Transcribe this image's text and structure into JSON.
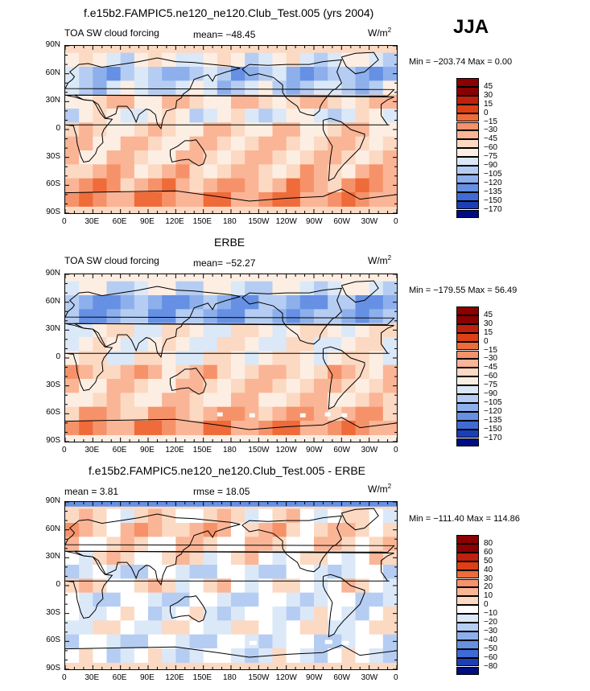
{
  "header": {
    "season": "JJA"
  },
  "panels": [
    {
      "title": "f.e15b2.FAMPIC5.ne120_ne120.Club_Test.005 (yrs 2004)",
      "field_label": "TOA SW cloud forcing",
      "stat1": "mean=  −48.45",
      "stat2": "",
      "units": "W/m",
      "units_sup": "2",
      "minmax": "Min = −203.74  Max =    0.00",
      "colorbar": [
        "45",
        "30",
        "15",
        "0",
        "−15",
        "−30",
        "−45",
        "−60",
        "−75",
        "−90",
        "−105",
        "−120",
        "−135",
        "−150",
        "−170"
      ]
    },
    {
      "title": "ERBE",
      "field_label": "TOA SW cloud forcing",
      "stat1": "mean= −52.27",
      "stat2": "",
      "units": "W/m",
      "units_sup": "2",
      "minmax": "Min = −179.55  Max =   56.49",
      "colorbar": [
        "45",
        "30",
        "15",
        "0",
        "−15",
        "−30",
        "−45",
        "−60",
        "−75",
        "−90",
        "−105",
        "−120",
        "−135",
        "−150",
        "−170"
      ]
    },
    {
      "title": "f.e15b2.FAMPIC5.ne120_ne120.Club_Test.005 - ERBE",
      "field_label": "",
      "stat1": "mean =    3.81",
      "stat2": "rmse =   18.05",
      "units": "W/m",
      "units_sup": "2",
      "minmax": "Min = −111.40  Max = 114.86",
      "colorbar": [
        "80",
        "60",
        "50",
        "40",
        "30",
        "20",
        "10",
        "0",
        "−10",
        "−20",
        "−30",
        "−40",
        "−50",
        "−60",
        "−80"
      ]
    }
  ],
  "axes": {
    "y_ticks": [
      "90N",
      "60N",
      "30N",
      "0",
      "30S",
      "60S",
      "90S"
    ],
    "x_ticks": [
      "0",
      "30E",
      "60E",
      "90E",
      "120E",
      "150E",
      "180",
      "150W",
      "120W",
      "90W",
      "60W",
      "30W",
      "0"
    ]
  },
  "colors": {
    "forcing": [
      "#8b0000",
      "#c1200f",
      "#de3f15",
      "#ef6b3a",
      "#f6926a",
      "#fab596",
      "#fcd9c2",
      "#fdeee3",
      "#dbe8f8",
      "#b5cdf2",
      "#8db0ec",
      "#6690e3",
      "#3f6bd6",
      "#1c3fb8",
      "#000c82"
    ],
    "diff": [
      "#8b0000",
      "#c1200f",
      "#de3f15",
      "#ef6b3a",
      "#f6926a",
      "#fab596",
      "#fcd9c2",
      "#ffffff",
      "#dbe8f8",
      "#b5cdf2",
      "#8db0ec",
      "#6690e3",
      "#3f6bd6",
      "#1c3fb8",
      "#000c82"
    ]
  },
  "chart_data": [
    {
      "type": "heatmap",
      "title": "f.e15b2.FAMPIC5.ne120_ne120.Club_Test.005 (yrs 2004)",
      "variable": "TOA SW cloud forcing",
      "units": "W/m2",
      "season": "JJA",
      "mean": -48.45,
      "min": -203.74,
      "max": 0.0,
      "contour_levels": [
        45,
        30,
        15,
        0,
        -15,
        -30,
        -45,
        -60,
        -75,
        -90,
        -105,
        -120,
        -135,
        -150,
        -170
      ],
      "lat_bands": [
        {
          "lat": 75,
          "value": -60
        },
        {
          "lat": 60,
          "value": -90
        },
        {
          "lat": 45,
          "value": -75
        },
        {
          "lat": 30,
          "value": -35
        },
        {
          "lat": 15,
          "value": -60
        },
        {
          "lat": 0,
          "value": -40
        },
        {
          "lat": -15,
          "value": -35
        },
        {
          "lat": -30,
          "value": -35
        },
        {
          "lat": -45,
          "value": -30
        },
        {
          "lat": -60,
          "value": -15
        },
        {
          "lat": -75,
          "value": -10
        }
      ]
    },
    {
      "type": "heatmap",
      "title": "ERBE",
      "variable": "TOA SW cloud forcing",
      "units": "W/m2",
      "season": "JJA",
      "mean": -52.27,
      "min": -179.55,
      "max": 56.49,
      "contour_levels": [
        45,
        30,
        15,
        0,
        -15,
        -30,
        -45,
        -60,
        -75,
        -90,
        -105,
        -120,
        -135,
        -150,
        -170
      ],
      "lat_bands": [
        {
          "lat": 75,
          "value": -65
        },
        {
          "lat": 60,
          "value": -100
        },
        {
          "lat": 45,
          "value": -95
        },
        {
          "lat": 30,
          "value": -50
        },
        {
          "lat": 15,
          "value": -55
        },
        {
          "lat": 0,
          "value": -50
        },
        {
          "lat": -15,
          "value": -30
        },
        {
          "lat": -30,
          "value": -35
        },
        {
          "lat": -45,
          "value": -40
        },
        {
          "lat": -60,
          "value": -20
        },
        {
          "lat": -75,
          "value": -10
        }
      ]
    },
    {
      "type": "heatmap",
      "title": "f.e15b2.FAMPIC5.ne120_ne120.Club_Test.005 - ERBE",
      "units": "W/m2",
      "season": "JJA",
      "mean": 3.81,
      "rmse": 18.05,
      "min": -111.4,
      "max": 114.86,
      "contour_levels": [
        80,
        60,
        50,
        40,
        30,
        20,
        10,
        0,
        -10,
        -20,
        -30,
        -40,
        -50,
        -60,
        -80
      ],
      "lat_bands": [
        {
          "lat": 75,
          "value": 10
        },
        {
          "lat": 60,
          "value": 20
        },
        {
          "lat": 45,
          "value": 15
        },
        {
          "lat": 30,
          "value": 10
        },
        {
          "lat": 15,
          "value": -5
        },
        {
          "lat": 0,
          "value": 10
        },
        {
          "lat": -15,
          "value": -5
        },
        {
          "lat": -30,
          "value": 0
        },
        {
          "lat": -45,
          "value": 5
        },
        {
          "lat": -60,
          "value": -5
        },
        {
          "lat": -75,
          "value": 0
        }
      ]
    }
  ]
}
